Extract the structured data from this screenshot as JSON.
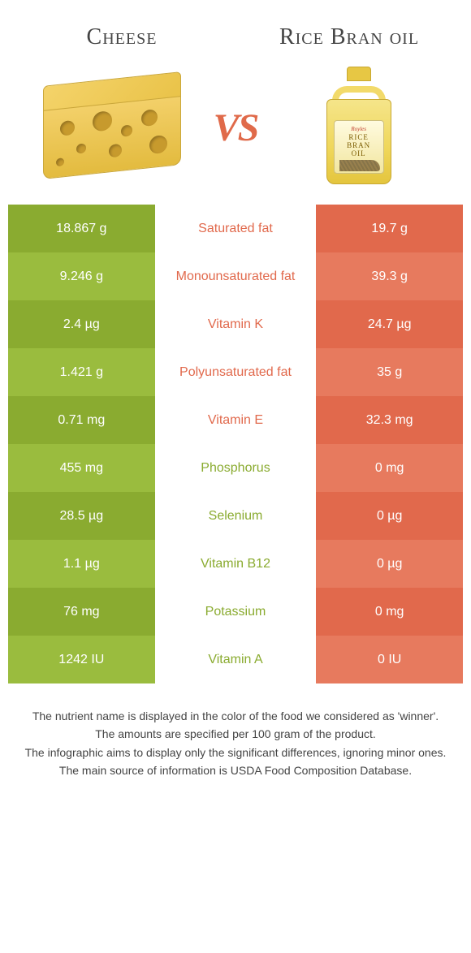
{
  "colors": {
    "green_dark": "#8aab30",
    "green_light": "#9abc3e",
    "orange_dark": "#e1694c",
    "orange_light": "#e77a5e",
    "mid_text_green": "#8aab30",
    "mid_text_orange": "#e1694c"
  },
  "header": {
    "left_title": "Cheese",
    "right_title": "Rice Bran oil",
    "vs_label": "VS",
    "oil_label_brand": "Royles",
    "oil_label_l1": "Rice",
    "oil_label_l2": "Bran",
    "oil_label_l3": "Oil"
  },
  "comparison": {
    "left_column_header_color": "green",
    "right_column_header_color": "orange",
    "rows": [
      {
        "label": "Saturated fat",
        "left": "18.867 g",
        "right": "19.7 g",
        "winner": "right"
      },
      {
        "label": "Monounsaturated fat",
        "left": "9.246 g",
        "right": "39.3 g",
        "winner": "right"
      },
      {
        "label": "Vitamin K",
        "left": "2.4 µg",
        "right": "24.7 µg",
        "winner": "right"
      },
      {
        "label": "Polyunsaturated fat",
        "left": "1.421 g",
        "right": "35 g",
        "winner": "right"
      },
      {
        "label": "Vitamin E",
        "left": "0.71 mg",
        "right": "32.3 mg",
        "winner": "right"
      },
      {
        "label": "Phosphorus",
        "left": "455 mg",
        "right": "0 mg",
        "winner": "left"
      },
      {
        "label": "Selenium",
        "left": "28.5 µg",
        "right": "0 µg",
        "winner": "left"
      },
      {
        "label": "Vitamin B12",
        "left": "1.1 µg",
        "right": "0 µg",
        "winner": "left"
      },
      {
        "label": "Potassium",
        "left": "76 mg",
        "right": "0 mg",
        "winner": "left"
      },
      {
        "label": "Vitamin A",
        "left": "1242 IU",
        "right": "0 IU",
        "winner": "left"
      }
    ]
  },
  "footnotes": {
    "line1": "The nutrient name is displayed in the color of the food we considered as 'winner'.",
    "line2": "The amounts are specified per 100 gram of the product.",
    "line3": "The infographic aims to display only the significant differences, ignoring minor ones.",
    "line4": "The main source of information is USDA Food Composition Database."
  }
}
